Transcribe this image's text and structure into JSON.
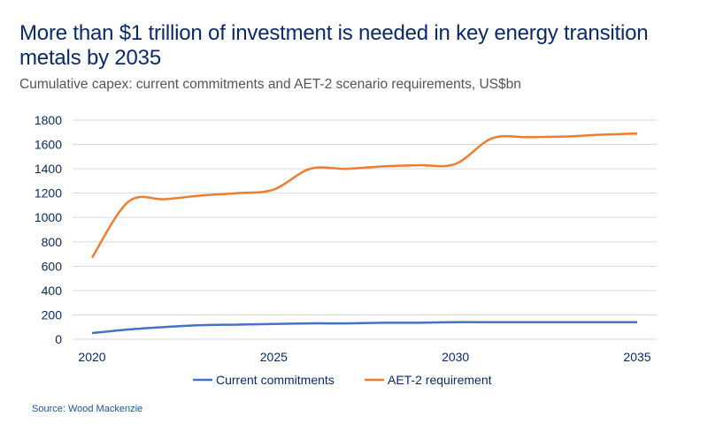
{
  "title": "More than $1 trillion of investment is needed in key energy transition metals by 2035",
  "subtitle": "Cumulative capex: current commitments and AET-2 scenario requirements, US$bn",
  "source": "Source: Wood Mackenzie",
  "chart_data": {
    "type": "line",
    "x": [
      2020,
      2021,
      2022,
      2023,
      2024,
      2025,
      2026,
      2027,
      2028,
      2029,
      2030,
      2031,
      2032,
      2033,
      2034,
      2035
    ],
    "xticks": [
      "2020",
      "2025",
      "2030",
      "2035"
    ],
    "yticks": [
      "0",
      "200",
      "400",
      "600",
      "800",
      "1000",
      "1200",
      "1400",
      "1600",
      "1800"
    ],
    "ylim": [
      0,
      1800
    ],
    "grid": true,
    "legend": "bottom",
    "series": [
      {
        "name": "Current commitments",
        "color": "#4472c4",
        "values": [
          50,
          80,
          100,
          115,
          120,
          125,
          130,
          130,
          135,
          135,
          140,
          140,
          140,
          140,
          140,
          140
        ]
      },
      {
        "name": "AET-2 requirement",
        "color": "#ed7d31",
        "values": [
          670,
          1130,
          1150,
          1180,
          1200,
          1230,
          1400,
          1400,
          1420,
          1430,
          1440,
          1650,
          1660,
          1665,
          1680,
          1690
        ]
      }
    ]
  }
}
